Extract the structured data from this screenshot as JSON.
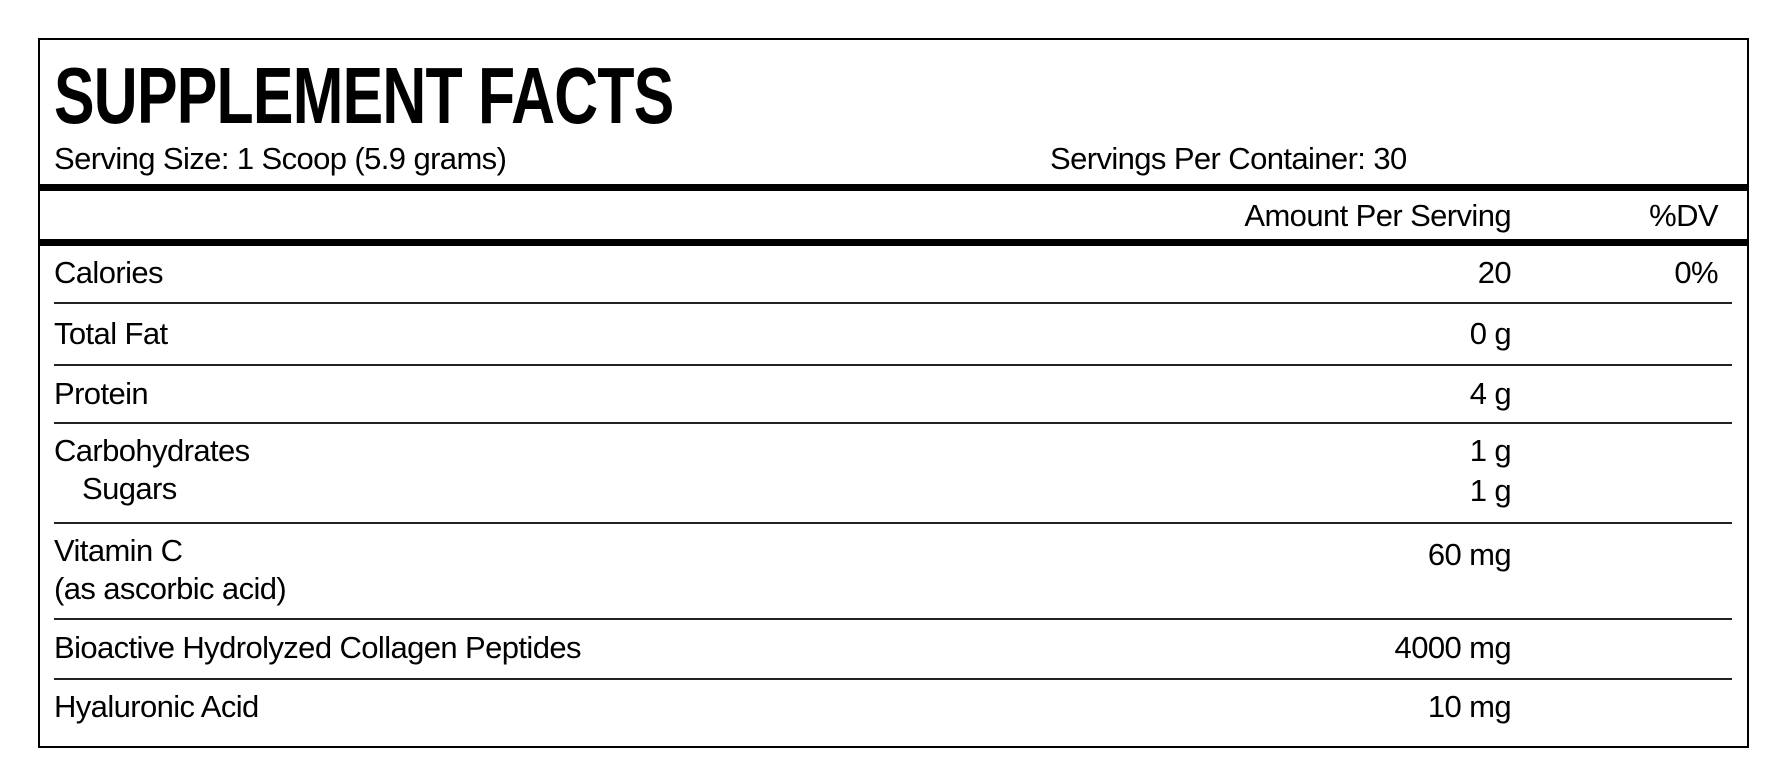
{
  "title": "SUPPLEMENT FACTS",
  "serving_size": "Serving Size: 1 Scoop (5.9 grams)",
  "servings_per_container": "Servings Per Container: 30",
  "headers": {
    "amount": "Amount Per Serving",
    "dv": "%DV"
  },
  "rows": [
    {
      "name": "Calories",
      "amount": "20",
      "dv": "0%"
    },
    {
      "name": "Total Fat",
      "amount": "0 g",
      "dv": ""
    },
    {
      "name": "Protein",
      "amount": "4 g",
      "dv": ""
    },
    {
      "name": "Carbohydrates",
      "amount": "1 g",
      "sub_name": "Sugars",
      "sub_amount": "1 g"
    },
    {
      "name": "Vitamin C",
      "note": "(as ascorbic acid)",
      "amount": "60 mg"
    },
    {
      "name": "Bioactive Hydrolyzed Collagen Peptides",
      "amount": "4000 mg"
    },
    {
      "name": "Hyaluronic Acid",
      "amount": "10 mg"
    }
  ]
}
